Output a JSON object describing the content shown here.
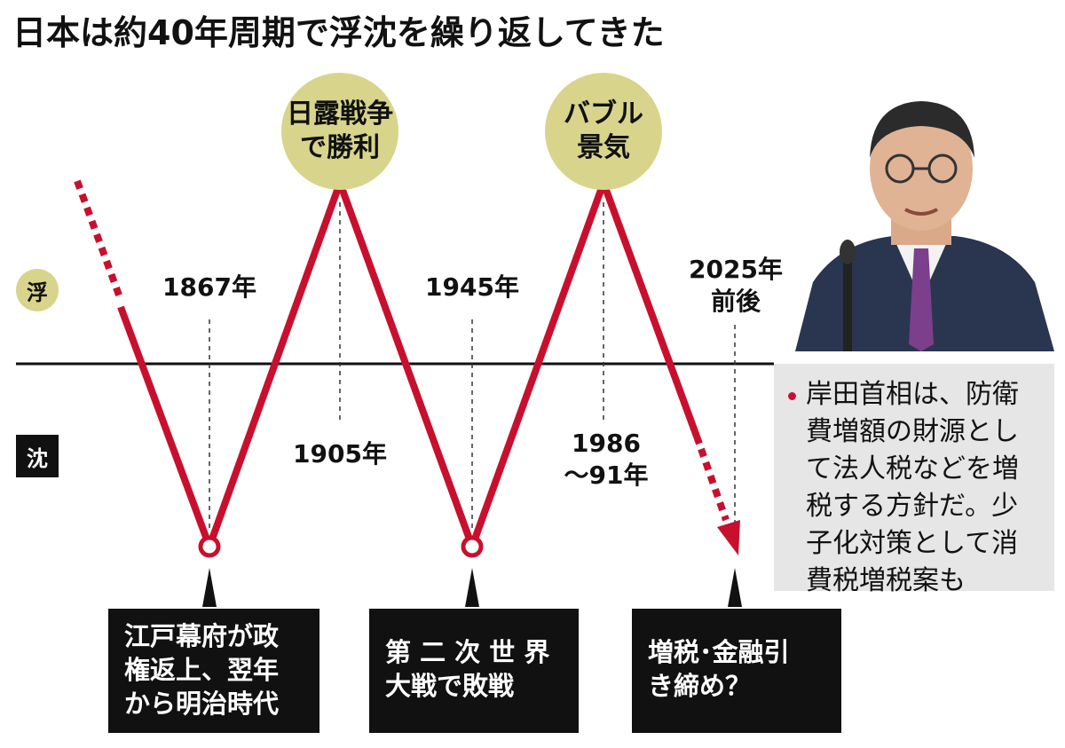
{
  "title": "日本は約40年周期で浮沈を繰り返してきた",
  "labels": {
    "float": "浮",
    "sink": "沈"
  },
  "peaks": [
    {
      "text": "日露戦争\nで勝利"
    },
    {
      "text": "バブル\n景気"
    }
  ],
  "years": {
    "y1867": "1867年",
    "y1905": "1905年",
    "y1945": "1945年",
    "y1986": "1986\n～91年",
    "y2025": "2025年\n前後"
  },
  "events": [
    {
      "text": "江戸幕府が政\n権返上、翌年\nから明治時代"
    },
    {
      "text": "第 二 次 世 界\n大戦で敗戦"
    },
    {
      "text": "増税･金融引\nき締め？"
    }
  ],
  "note": {
    "text": "岸田首相は、防衛\n費増額の財源とし\nて法人税などを増\n税する方針だ。少\n子化対策として消\n費税増税案も"
  },
  "colors": {
    "line": "#c8102e",
    "bubble": "#d8d48c",
    "box": "#111111",
    "note_bg": "#e6e6e6"
  }
}
